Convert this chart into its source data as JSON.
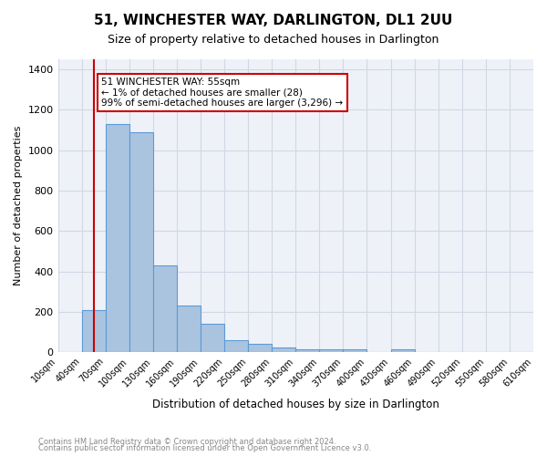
{
  "title": "51, WINCHESTER WAY, DARLINGTON, DL1 2UU",
  "subtitle": "Size of property relative to detached houses in Darlington",
  "xlabel": "Distribution of detached houses by size in Darlington",
  "ylabel": "Number of detached properties",
  "footnote1": "Contains HM Land Registry data © Crown copyright and database right 2024.",
  "footnote2": "Contains public sector information licensed under the Open Government Licence v3.0.",
  "bar_edges": [
    10,
    40,
    70,
    100,
    130,
    160,
    190,
    220,
    250,
    280,
    310,
    340,
    370,
    400,
    430,
    460,
    490,
    520,
    550,
    580,
    610
  ],
  "bar_heights": [
    0,
    210,
    1130,
    1090,
    430,
    230,
    140,
    60,
    40,
    25,
    15,
    15,
    15,
    0,
    15,
    0,
    0,
    0,
    0,
    0
  ],
  "bar_color": "#aac4e0",
  "bar_edge_color": "#5b9bd5",
  "grid_color": "#d0d8e4",
  "bg_color": "#eef2f8",
  "red_line_x": 55,
  "red_line_color": "#cc0000",
  "annotation_text": "51 WINCHESTER WAY: 55sqm\n← 1% of detached houses are smaller (28)\n99% of semi-detached houses are larger (3,296) →",
  "annotation_box_color": "#ffffff",
  "annotation_box_edge": "#cc0000",
  "ylim": [
    0,
    1450
  ],
  "yticks": [
    0,
    200,
    400,
    600,
    800,
    1000,
    1200,
    1400
  ],
  "tick_labels": [
    "10sqm",
    "40sqm",
    "70sqm",
    "100sqm",
    "130sqm",
    "160sqm",
    "190sqm",
    "220sqm",
    "250sqm",
    "280sqm",
    "310sqm",
    "340sqm",
    "370sqm",
    "400sqm",
    "430sqm",
    "460sqm",
    "490sqm",
    "520sqm",
    "550sqm",
    "580sqm",
    "610sqm"
  ]
}
